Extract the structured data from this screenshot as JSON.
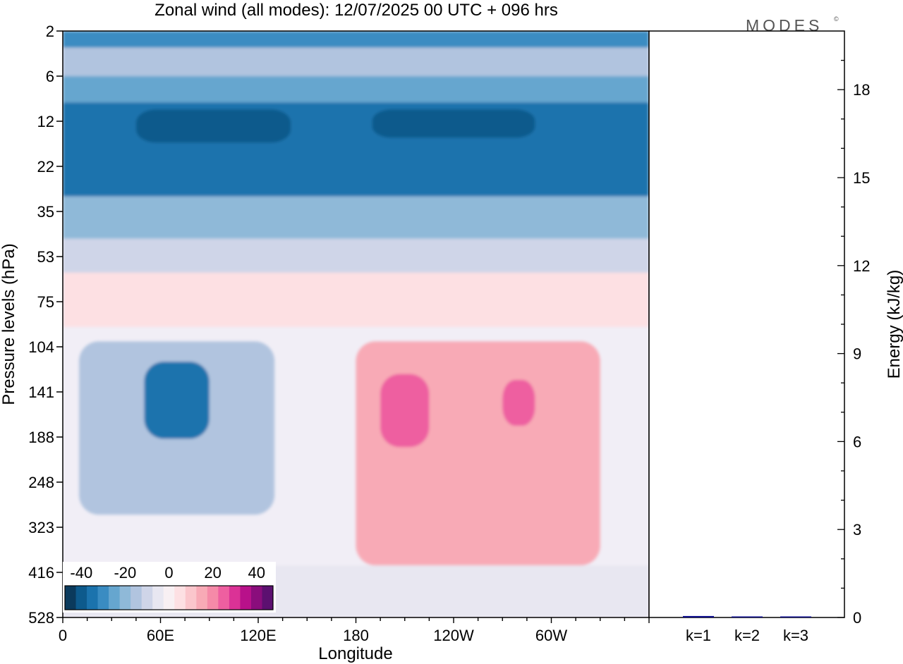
{
  "title": "Zonal wind (all modes):  12/07/2025  00 UTC  + 096 hrs",
  "logo_text": "MODES",
  "logo_mark": "©",
  "chart_data": [
    {
      "type": "heatmap",
      "title": "Zonal wind (all modes):  12/07/2025  00 UTC  + 096 hrs",
      "xlabel": "Longitude",
      "ylabel": "Pressure levels (hPa)",
      "x_ticks": [
        "0",
        "60E",
        "120E",
        "180",
        "120W",
        "60W"
      ],
      "y_ticks": [
        "2",
        "6",
        "12",
        "22",
        "35",
        "53",
        "75",
        "104",
        "141",
        "188",
        "248",
        "323",
        "416",
        "528"
      ],
      "colorbar": {
        "labels": [
          "-40",
          "-20",
          "0",
          "20",
          "40"
        ],
        "colors": [
          "#0b3a5c",
          "#0d5a8c",
          "#1b73ad",
          "#3a8cc2",
          "#66a6cf",
          "#8fb9d8",
          "#b1c4df",
          "#cfd5e8",
          "#e8e7f1",
          "#f8f0f3",
          "#fde0e3",
          "#fbc6cc",
          "#f8aab6",
          "#f58aa8",
          "#ee5fa0",
          "#db3296",
          "#b8118a",
          "#8a0d7c",
          "#5c1070"
        ]
      },
      "regions": [
        {
          "level": -30,
          "lon_range": [
            0,
            360
          ],
          "pressure_range": [
            2,
            3
          ]
        },
        {
          "level": -15,
          "lon_range": [
            0,
            360
          ],
          "pressure_range": [
            3,
            6
          ]
        },
        {
          "level": -25,
          "lon_range": [
            0,
            360
          ],
          "pressure_range": [
            6,
            9
          ]
        },
        {
          "level": -35,
          "lon_range": [
            0,
            360
          ],
          "pressure_range": [
            9,
            30
          ]
        },
        {
          "level": -40,
          "lon_range": [
            45,
            140
          ],
          "pressure_range": [
            10,
            16
          ]
        },
        {
          "level": -40,
          "lon_range": [
            190,
            290
          ],
          "pressure_range": [
            10,
            15
          ]
        },
        {
          "level": -20,
          "lon_range": [
            0,
            360
          ],
          "pressure_range": [
            30,
            45
          ]
        },
        {
          "level": -10,
          "lon_range": [
            0,
            360
          ],
          "pressure_range": [
            45,
            60
          ]
        },
        {
          "level": 5,
          "lon_range": [
            0,
            360
          ],
          "pressure_range": [
            60,
            90
          ]
        },
        {
          "level": -15,
          "lon_range": [
            10,
            130
          ],
          "pressure_range": [
            100,
            300
          ]
        },
        {
          "level": -35,
          "lon_range": [
            50,
            90
          ],
          "pressure_range": [
            115,
            190
          ]
        },
        {
          "level": 15,
          "lon_range": [
            180,
            330
          ],
          "pressure_range": [
            100,
            400
          ]
        },
        {
          "level": 25,
          "lon_range": [
            195,
            225
          ],
          "pressure_range": [
            125,
            200
          ]
        },
        {
          "level": 25,
          "lon_range": [
            270,
            290
          ],
          "pressure_range": [
            130,
            175
          ]
        },
        {
          "level": -5,
          "lon_range": [
            0,
            360
          ],
          "pressure_range": [
            400,
            528
          ]
        }
      ]
    },
    {
      "type": "bar",
      "ylabel": "Energy (kJ/kg)",
      "categories": [
        "k=1",
        "k=2",
        "k=3"
      ],
      "values": [
        0.05,
        0.02,
        0.01
      ],
      "ylim": [
        0,
        20
      ],
      "y_ticks": [
        0,
        3,
        6,
        9,
        12,
        15,
        18
      ],
      "bar_color": "#0a0a8a"
    }
  ]
}
